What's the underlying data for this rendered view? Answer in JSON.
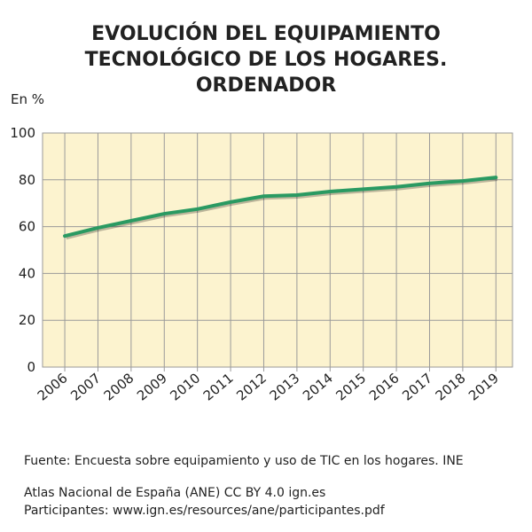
{
  "chart_data": {
    "type": "line",
    "title": "EVOLUCIÓN DEL EQUIPAMIENTO TECNOLÓGICO DE LOS HOGARES. ORDENADOR",
    "y_label": "En %",
    "x": [
      2006,
      2007,
      2008,
      2009,
      2010,
      2011,
      2012,
      2013,
      2014,
      2015,
      2016,
      2017,
      2018,
      2019
    ],
    "series": [
      {
        "color": "#2a9a62",
        "values": [
          56,
          59.5,
          62.5,
          65.5,
          67.5,
          70.5,
          73,
          73.5,
          75,
          76,
          77,
          78.5,
          79.5,
          81
        ]
      }
    ],
    "xlim": [
      2005.33,
      2019.5
    ],
    "xticks": [
      2006,
      2007,
      2008,
      2009,
      2010,
      2011,
      2012,
      2013,
      2014,
      2015,
      2016,
      2017,
      2018,
      2019
    ],
    "ylim": [
      0,
      100
    ],
    "yticks": [
      0,
      20,
      40,
      60,
      80,
      100
    ],
    "grid": true,
    "source": "Fuente: Encuesta sobre equipamiento y uso de TIC en los hogares. INE",
    "credits": [
      "Atlas Nacional de España (ANE) CC BY 4.0 ign.es",
      "Participantes: www.ign.es/resources/ane/participantes.pdf"
    ]
  }
}
